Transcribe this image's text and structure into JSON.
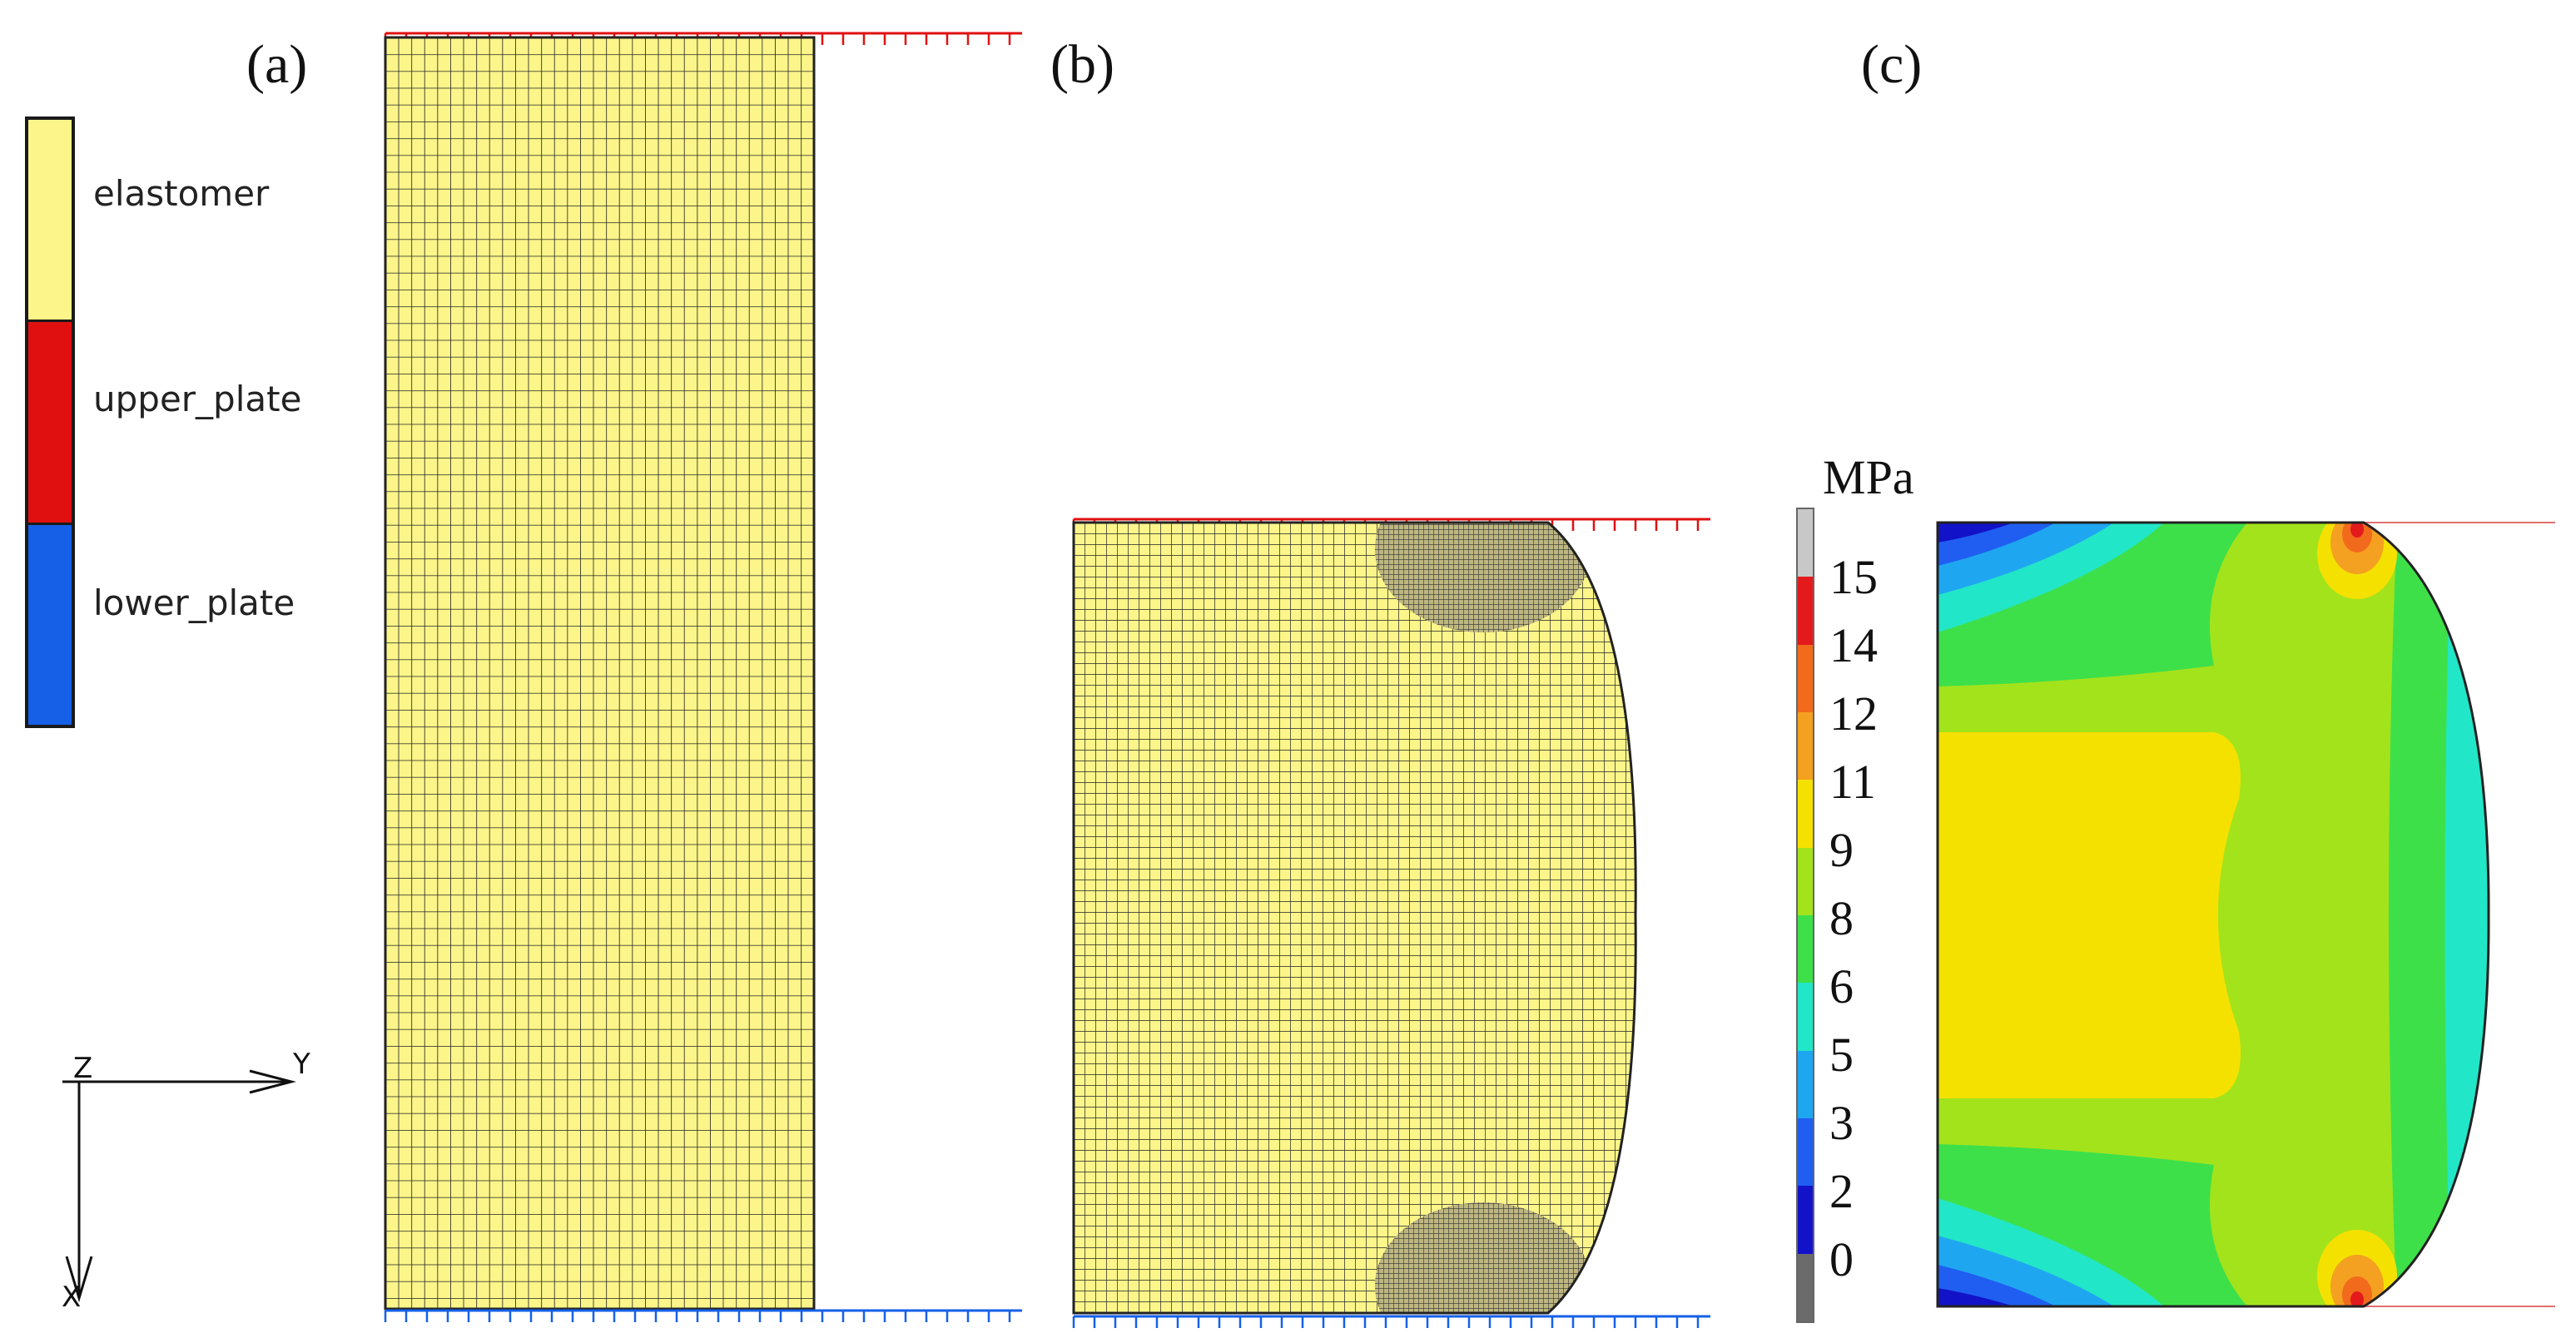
{
  "panels": {
    "a": {
      "label": "(a)"
    },
    "b": {
      "label": "(b)"
    },
    "c": {
      "label": "(c)"
    }
  },
  "legend": {
    "items": [
      {
        "label": "elastomer",
        "color": "#fbf58a"
      },
      {
        "label": "upper_plate",
        "color": "#e01010"
      },
      {
        "label": "lower_plate",
        "color": "#1660e8"
      }
    ]
  },
  "axes": {
    "z_label": "Z",
    "y_label": "Y",
    "x_label": "X"
  },
  "colorbar": {
    "unit": "MPa",
    "tick_labels": [
      "15",
      "14",
      "12",
      "11",
      "9",
      "8",
      "6",
      "5",
      "3",
      "2",
      "0"
    ],
    "colors": [
      "#c8c8c8",
      "#e31a1c",
      "#f26a1b",
      "#f4a020",
      "#f5e100",
      "#a3e31c",
      "#3ee04a",
      "#22e6c8",
      "#1fa6f0",
      "#1f5ef0",
      "#1212c8",
      "#6b6b6b"
    ]
  },
  "colors": {
    "mesh_fill": "#fbf58a",
    "mesh_line": "#222222",
    "upper_plate": "#e01010",
    "lower_plate": "#1660e8"
  }
}
